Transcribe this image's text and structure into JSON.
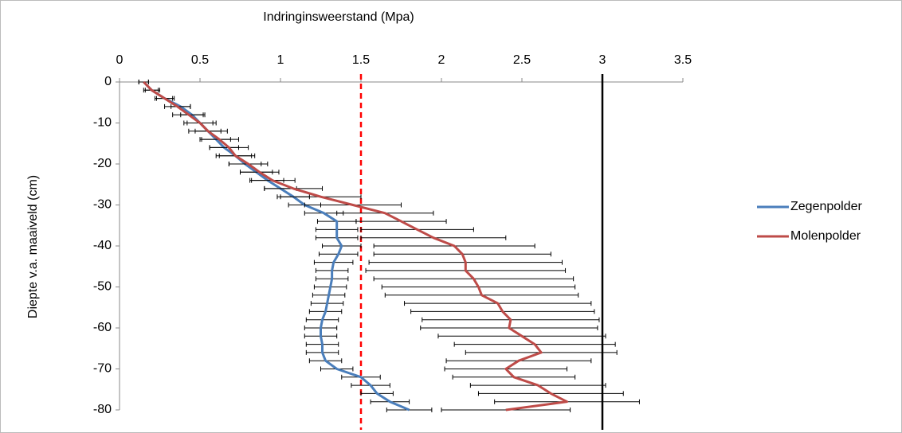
{
  "chart_data": {
    "type": "line",
    "title": "Indringinsweerstand (Mpa)",
    "y_label": "Diepte v.a. maaiveld (cm)",
    "depth": [
      0,
      -2,
      -4,
      -6,
      -8,
      -10,
      -12,
      -14,
      -16,
      -18,
      -20,
      -22,
      -24,
      -26,
      -28,
      -30,
      -32,
      -34,
      -36,
      -38,
      -40,
      -42,
      -44,
      -46,
      -48,
      -50,
      -52,
      -54,
      -56,
      -58,
      -60,
      -62,
      -64,
      -66,
      -68,
      -70,
      -72,
      -74,
      -76,
      -78,
      -80
    ],
    "series": [
      {
        "name": "Zegenpolder",
        "color": "#4a7ebb",
        "values": [
          0.15,
          0.2,
          0.28,
          0.38,
          0.45,
          0.5,
          0.55,
          0.6,
          0.65,
          0.72,
          0.78,
          0.85,
          0.92,
          1.0,
          1.08,
          1.15,
          1.27,
          1.35,
          1.35,
          1.35,
          1.38,
          1.36,
          1.33,
          1.32,
          1.32,
          1.31,
          1.3,
          1.29,
          1.28,
          1.26,
          1.25,
          1.25,
          1.26,
          1.26,
          1.28,
          1.35,
          1.5,
          1.56,
          1.6,
          1.68,
          1.8
        ],
        "errors": [
          0.03,
          0.04,
          0.05,
          0.06,
          0.07,
          0.08,
          0.08,
          0.09,
          0.09,
          0.1,
          0.1,
          0.1,
          0.1,
          0.1,
          0.1,
          0.1,
          0.12,
          0.12,
          0.13,
          0.13,
          0.12,
          0.12,
          0.12,
          0.1,
          0.1,
          0.1,
          0.1,
          0.1,
          0.1,
          0.1,
          0.1,
          0.1,
          0.1,
          0.1,
          0.1,
          0.1,
          0.12,
          0.12,
          0.1,
          0.12,
          0.14
        ]
      },
      {
        "name": "Molenpolder",
        "color": "#be4b48",
        "values": [
          0.15,
          0.2,
          0.28,
          0.36,
          0.43,
          0.5,
          0.55,
          0.62,
          0.68,
          0.72,
          0.8,
          0.87,
          0.95,
          1.08,
          1.25,
          1.45,
          1.65,
          1.75,
          1.85,
          1.95,
          2.08,
          2.13,
          2.15,
          2.15,
          2.2,
          2.23,
          2.25,
          2.35,
          2.38,
          2.43,
          2.42,
          2.5,
          2.58,
          2.62,
          2.48,
          2.4,
          2.45,
          2.6,
          2.68,
          2.78,
          2.4
        ],
        "errors": [
          0.03,
          0.05,
          0.06,
          0.08,
          0.1,
          0.1,
          0.12,
          0.12,
          0.12,
          0.12,
          0.12,
          0.12,
          0.14,
          0.18,
          0.25,
          0.3,
          0.3,
          0.28,
          0.35,
          0.45,
          0.5,
          0.55,
          0.6,
          0.62,
          0.62,
          0.6,
          0.6,
          0.58,
          0.57,
          0.55,
          0.55,
          0.52,
          0.5,
          0.47,
          0.45,
          0.38,
          0.38,
          0.42,
          0.45,
          0.45,
          0.4
        ]
      }
    ],
    "reference_lines": [
      {
        "value": 1.5,
        "color": "#ff0000",
        "style": "dashed"
      },
      {
        "value": 3,
        "color": "#000000",
        "style": "solid"
      }
    ],
    "xlim": [
      0,
      3.5
    ],
    "xticks": [
      0,
      0.5,
      1,
      1.5,
      2,
      2.5,
      3,
      3.5
    ],
    "ylim": [
      -80,
      0
    ],
    "yticks": [
      0,
      -10,
      -20,
      -30,
      -40,
      -50,
      -60,
      -70,
      -80
    ],
    "legend": "right",
    "grid": false
  }
}
